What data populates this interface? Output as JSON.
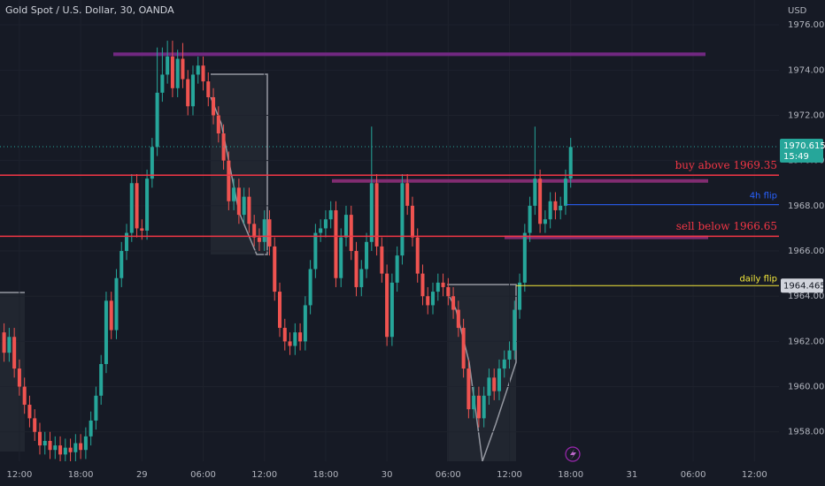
{
  "chart_data": {
    "type": "candlestick",
    "title": "Gold Spot / U.S. Dollar, 30, OANDA",
    "currency": "USD",
    "up_color": "#26a69a",
    "down_color": "#ef5350",
    "x": [
      10.5,
      11,
      11.5,
      12,
      12.5,
      13,
      13.5,
      14,
      14.5,
      15,
      15.5,
      16,
      16.5,
      17,
      17.5,
      18,
      18.5,
      19,
      19.5,
      20,
      20.5,
      21,
      21.5,
      22,
      22.5,
      23,
      23.5,
      24,
      24.5,
      25,
      25.5,
      26,
      26.5,
      27,
      27.5,
      28,
      28.5,
      29,
      29.5,
      30,
      30.5,
      31,
      31.5,
      32,
      32.5,
      33,
      33.5,
      34,
      34.5,
      35,
      35.5,
      36,
      36.5,
      37,
      37.5,
      38,
      38.5,
      39,
      39.5,
      40,
      40.5,
      41,
      41.5,
      42,
      42.5,
      43,
      43.5,
      44,
      44.5,
      45,
      45.5,
      46,
      46.5,
      47,
      47.5,
      48,
      48.5,
      49,
      49.5,
      50,
      50.5,
      51,
      51.5,
      52,
      52.5,
      53,
      53.5,
      54,
      54.5,
      55,
      55.5,
      56,
      56.5,
      57,
      57.5,
      58,
      58.5,
      59,
      59.5,
      60,
      60.5,
      61,
      61.5,
      62,
      62.5,
      63,
      63.5,
      64,
      64.5,
      65,
      65.5,
      66
    ],
    "open": [
      1962.4,
      1961.5,
      1962.2,
      1960.8,
      1960.0,
      1959.2,
      1958.6,
      1958.0,
      1957.4,
      1957.6,
      1957.2,
      1957.4,
      1957.0,
      1957.3,
      1957.1,
      1957.5,
      1957.2,
      1957.8,
      1958.5,
      1959.6,
      1961.0,
      1963.8,
      1962.5,
      1964.8,
      1966.0,
      1966.8,
      1969.0,
      1967.0,
      1966.9,
      1969.2,
      1970.6,
      1973.0,
      1973.8,
      1974.6,
      1973.2,
      1974.5,
      1973.6,
      1972.4,
      1973.8,
      1974.2,
      1973.5,
      1972.8,
      1972.0,
      1971.2,
      1970.0,
      1968.2,
      1968.8,
      1967.6,
      1968.4,
      1967.2,
      1966.6,
      1966.4,
      1967.4,
      1966.2,
      1964.2,
      1962.6,
      1962.0,
      1961.8,
      1962.4,
      1962.0,
      1963.6,
      1965.2,
      1966.8,
      1967.0,
      1967.4,
      1967.8,
      1964.8,
      1966.6,
      1967.6,
      1966.0,
      1964.4,
      1965.2,
      1966.4,
      1969.0,
      1966.2,
      1965.0,
      1962.2,
      1964.6,
      1965.8,
      1969.0,
      1968.0,
      1966.6,
      1965.0,
      1964.0,
      1963.6,
      1964.2,
      1964.6,
      1964.4,
      1964.0,
      1963.4,
      1962.6,
      1960.8,
      1959.0,
      1959.6,
      1958.6,
      1959.6,
      1960.4,
      1959.8,
      1960.8,
      1961.2,
      1961.6,
      1963.4,
      1964.6,
      1966.8,
      1968.0,
      1969.2,
      1967.2,
      1967.4,
      1968.2,
      1967.8,
      1968.0,
      1969.2
    ],
    "high": [
      1962.8,
      1962.6,
      1962.6,
      1961.2,
      1960.4,
      1959.6,
      1959.0,
      1958.4,
      1958.0,
      1958.0,
      1957.8,
      1957.8,
      1957.7,
      1957.7,
      1957.9,
      1957.9,
      1958.2,
      1958.9,
      1960.0,
      1961.4,
      1964.2,
      1964.2,
      1965.2,
      1966.4,
      1967.2,
      1969.4,
      1969.4,
      1967.4,
      1969.6,
      1971.0,
      1975.0,
      1975.0,
      1975.3,
      1975.3,
      1974.9,
      1975.2,
      1974.0,
      1974.2,
      1974.6,
      1974.6,
      1973.9,
      1973.2,
      1972.4,
      1971.6,
      1970.4,
      1969.2,
      1969.2,
      1968.8,
      1968.8,
      1967.6,
      1967.0,
      1967.8,
      1967.8,
      1966.6,
      1964.6,
      1963.0,
      1962.4,
      1962.8,
      1962.8,
      1964.0,
      1965.6,
      1967.2,
      1967.4,
      1967.8,
      1968.2,
      1968.2,
      1967.0,
      1968.0,
      1968.0,
      1966.4,
      1965.6,
      1966.8,
      1971.5,
      1969.4,
      1966.6,
      1965.4,
      1965.0,
      1966.2,
      1969.4,
      1969.4,
      1968.4,
      1967.0,
      1965.4,
      1964.4,
      1964.6,
      1965.0,
      1965.0,
      1964.8,
      1964.4,
      1963.8,
      1963.0,
      1961.2,
      1960.0,
      1960.0,
      1960.0,
      1960.8,
      1960.8,
      1961.2,
      1961.6,
      1962.0,
      1963.8,
      1965.0,
      1967.2,
      1968.4,
      1971.5,
      1969.6,
      1967.8,
      1968.6,
      1968.6,
      1968.4,
      1969.6,
      1971.0
    ],
    "low": [
      1961.1,
      1961.1,
      1960.4,
      1959.6,
      1958.8,
      1958.2,
      1957.6,
      1957.0,
      1957.0,
      1956.8,
      1956.8,
      1956.6,
      1956.6,
      1956.7,
      1956.7,
      1956.8,
      1956.8,
      1957.4,
      1958.1,
      1959.2,
      1960.6,
      1962.1,
      1962.1,
      1964.4,
      1965.6,
      1966.4,
      1966.6,
      1966.5,
      1966.5,
      1968.8,
      1970.2,
      1972.6,
      1973.4,
      1972.8,
      1972.8,
      1973.2,
      1972.0,
      1972.0,
      1973.4,
      1973.1,
      1972.4,
      1971.6,
      1970.8,
      1969.6,
      1967.8,
      1967.8,
      1967.2,
      1967.2,
      1966.8,
      1966.2,
      1966.0,
      1966.0,
      1965.8,
      1963.8,
      1962.2,
      1961.6,
      1961.4,
      1961.4,
      1961.6,
      1961.6,
      1963.2,
      1964.8,
      1966.4,
      1966.6,
      1967.0,
      1964.4,
      1964.4,
      1966.2,
      1965.6,
      1964.0,
      1964.0,
      1964.8,
      1966.0,
      1965.8,
      1964.6,
      1961.8,
      1961.8,
      1964.2,
      1965.4,
      1967.6,
      1966.2,
      1964.6,
      1963.6,
      1963.2,
      1963.2,
      1963.8,
      1964.0,
      1963.6,
      1963.0,
      1962.2,
      1960.4,
      1958.6,
      1958.6,
      1958.2,
      1958.2,
      1959.2,
      1959.4,
      1959.4,
      1960.4,
      1960.8,
      1961.2,
      1963.0,
      1964.2,
      1966.4,
      1967.6,
      1966.8,
      1966.8,
      1967.0,
      1967.4,
      1967.4,
      1967.6,
      1968.8
    ],
    "close": [
      1961.5,
      1962.2,
      1960.8,
      1960.0,
      1959.2,
      1958.6,
      1958.0,
      1957.4,
      1957.6,
      1957.2,
      1957.4,
      1957.0,
      1957.3,
      1957.1,
      1957.5,
      1957.2,
      1957.8,
      1958.5,
      1959.6,
      1961.0,
      1963.8,
      1962.5,
      1964.8,
      1966.0,
      1966.8,
      1969.0,
      1967.0,
      1966.9,
      1969.2,
      1970.6,
      1973.0,
      1973.8,
      1974.6,
      1973.2,
      1974.5,
      1973.6,
      1972.4,
      1973.8,
      1974.2,
      1973.5,
      1972.8,
      1972.0,
      1971.2,
      1970.0,
      1968.2,
      1968.8,
      1967.6,
      1968.4,
      1967.2,
      1966.6,
      1966.4,
      1967.4,
      1966.2,
      1964.2,
      1962.6,
      1962.0,
      1961.8,
      1962.4,
      1962.0,
      1963.6,
      1965.2,
      1966.8,
      1967.0,
      1967.4,
      1967.8,
      1964.8,
      1966.6,
      1967.6,
      1966.0,
      1964.4,
      1965.2,
      1966.4,
      1969.0,
      1966.2,
      1965.0,
      1962.2,
      1964.6,
      1965.8,
      1969.0,
      1968.0,
      1966.6,
      1965.0,
      1964.0,
      1963.6,
      1964.2,
      1964.6,
      1964.4,
      1964.0,
      1963.4,
      1962.6,
      1960.8,
      1959.0,
      1959.6,
      1958.6,
      1959.6,
      1960.4,
      1959.8,
      1960.8,
      1961.2,
      1961.6,
      1963.4,
      1964.6,
      1966.8,
      1968.0,
      1969.2,
      1967.2,
      1967.4,
      1968.2,
      1967.8,
      1968.0,
      1969.2,
      1970.6
    ],
    "xlim": [
      10.1,
      86.4
    ],
    "xticks": [
      {
        "value": 12,
        "label": "12:00"
      },
      {
        "value": 18,
        "label": "18:00"
      },
      {
        "value": 24,
        "label": "29"
      },
      {
        "value": 30,
        "label": "06:00"
      },
      {
        "value": 36,
        "label": "12:00"
      },
      {
        "value": 42,
        "label": "18:00"
      },
      {
        "value": 48,
        "label": "30"
      },
      {
        "value": 54,
        "label": "06:00"
      },
      {
        "value": 60,
        "label": "12:00"
      },
      {
        "value": 66,
        "label": "18:00"
      },
      {
        "value": 72,
        "label": "31"
      },
      {
        "value": 78,
        "label": "06:00"
      },
      {
        "value": 84,
        "label": "12:00"
      }
    ],
    "ylim": [
      1956.7,
      1977.1
    ],
    "yticks": [
      {
        "value": 1958,
        "label": "1958.000"
      },
      {
        "value": 1960,
        "label": "1960.000"
      },
      {
        "value": 1962,
        "label": "1962.000"
      },
      {
        "value": 1964,
        "label": "1964.000"
      },
      {
        "value": 1966,
        "label": "1966.000"
      },
      {
        "value": 1968,
        "label": "1968.000"
      },
      {
        "value": 1970,
        "label": "1970.000"
      },
      {
        "value": 1972,
        "label": "1972.000"
      },
      {
        "value": 1974,
        "label": "1974.000"
      },
      {
        "value": 1976,
        "label": "1976.000"
      }
    ],
    "levels": [
      {
        "label": "buy above 1969.35",
        "value": 1969.35,
        "color": "#f23645"
      },
      {
        "label": "sell below 1966.65",
        "value": 1966.65,
        "color": "#f23645"
      },
      {
        "label": "4h flip",
        "value": 1968.05,
        "color": "#2962ff"
      },
      {
        "label": "daily flip",
        "value": 1964.465,
        "color": "#f5e93b"
      }
    ],
    "zones": [
      {
        "value": 1974.7,
        "color": "#7b2a8c"
      },
      {
        "value": 1969.1,
        "color": "#8e2f7a"
      },
      {
        "value": 1966.6,
        "color": "#8e2f7a"
      }
    ],
    "last_price": 1970.615,
    "countdown": "15:49"
  }
}
